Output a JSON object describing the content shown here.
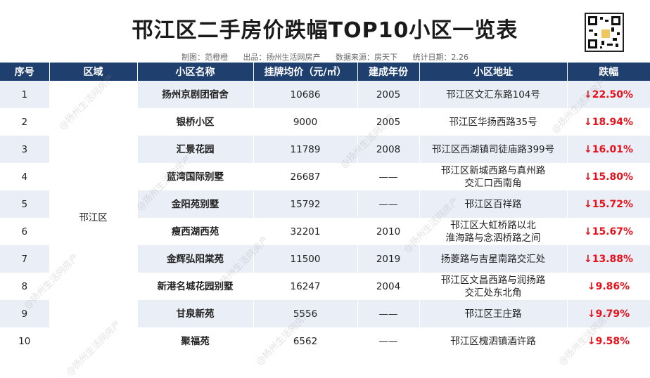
{
  "title": "邗江区二手房价跌幅TOP10小区一览表",
  "meta": {
    "maker": "制图：范橙橙",
    "publisher": "出品：扬州生活网房产",
    "source": "数据来源：房天下",
    "date": "统计日期：2.26"
  },
  "watermark": "@扬州生活网房产",
  "headers": [
    "序号",
    "区域",
    "小区名称",
    "挂牌均价（元/㎡）",
    "建成年份",
    "小区地址",
    "跌幅"
  ],
  "region": "邗江区",
  "rows": [
    {
      "no": "1",
      "name": "扬州京剧团宿舍",
      "price": "10686",
      "year": "2005",
      "addr1": "邗江区文汇东路104号",
      "addr2": "",
      "drop": "↓22.50%"
    },
    {
      "no": "2",
      "name": "银桥小区",
      "price": "9000",
      "year": "2005",
      "addr1": "邗江区华扬西路35号",
      "addr2": "",
      "drop": "↓18.94%"
    },
    {
      "no": "3",
      "name": "汇景花园",
      "price": "11789",
      "year": "2008",
      "addr1": "邗江区西湖镇司徒庙路399号",
      "addr2": "",
      "drop": "↓16.01%"
    },
    {
      "no": "4",
      "name": "蓝湾国际别墅",
      "price": "26687",
      "year": "——",
      "addr1": "邗江区新城西路与真州路",
      "addr2": "交汇口西南角",
      "drop": "↓15.80%"
    },
    {
      "no": "5",
      "name": "金阳苑别墅",
      "price": "15792",
      "year": "——",
      "addr1": "邗江区百祥路",
      "addr2": "",
      "drop": "↓15.72%"
    },
    {
      "no": "6",
      "name": "瘦西湖西苑",
      "price": "32201",
      "year": "2010",
      "addr1": "邗江区大虹桥路以北",
      "addr2": "淮海路与念泗桥路之间",
      "drop": "↓15.67%"
    },
    {
      "no": "7",
      "name": "金辉弘阳棠苑",
      "price": "11500",
      "year": "2019",
      "addr1": "扬菱路与吉星南路交汇处",
      "addr2": "",
      "drop": "↓13.88%"
    },
    {
      "no": "8",
      "name": "新港名城花园别墅",
      "price": "16247",
      "year": "2004",
      "addr1": "邗江区文昌西路与润扬路",
      "addr2": "交汇处东北角",
      "drop": "↓9.86%"
    },
    {
      "no": "9",
      "name": "甘泉新苑",
      "price": "5556",
      "year": "——",
      "addr1": "邗江区王庄路",
      "addr2": "",
      "drop": "↓9.79%"
    },
    {
      "no": "10",
      "name": "聚福苑",
      "price": "6562",
      "year": "——",
      "addr1": "邗江区槐泗镇酒许路",
      "addr2": "",
      "drop": "↓9.58%"
    }
  ]
}
